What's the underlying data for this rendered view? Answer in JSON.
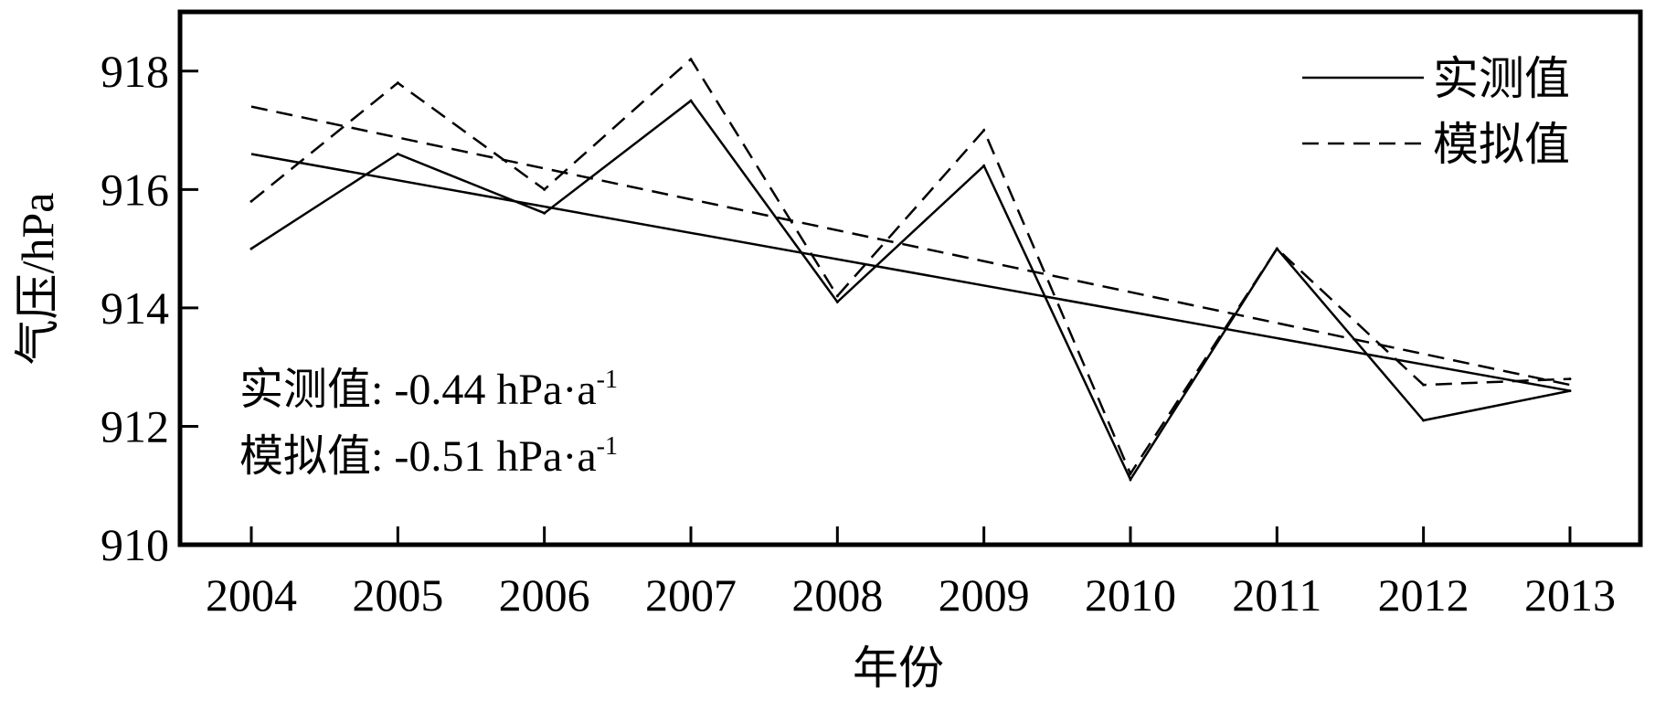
{
  "chart_data": {
    "type": "line",
    "xlabel": "年份",
    "ylabel": "气压/hPa",
    "ylim": [
      910,
      919
    ],
    "yticks": [
      910,
      912,
      914,
      916,
      918
    ],
    "x": [
      "2004",
      "2005",
      "2006",
      "2007",
      "2008",
      "2009",
      "2010",
      "2011",
      "2012",
      "2013"
    ],
    "series": [
      {
        "name": "实测值",
        "style": "solid",
        "values": [
          915.0,
          916.6,
          915.6,
          917.5,
          914.1,
          916.4,
          911.1,
          915.0,
          912.1,
          912.6
        ]
      },
      {
        "name": "模拟值",
        "style": "dashed",
        "values": [
          915.8,
          917.8,
          916.0,
          918.2,
          914.2,
          917.0,
          911.2,
          915.0,
          912.7,
          912.8
        ]
      }
    ],
    "trendlines": [
      {
        "series": "实测值",
        "style": "solid",
        "start": 916.6,
        "end": 912.6
      },
      {
        "series": "模拟值",
        "style": "dashed",
        "start": 917.4,
        "end": 912.7
      }
    ],
    "annotations": [
      {
        "label": "实测值: ",
        "value": "-0.44 hPa·a",
        "sup": "-1"
      },
      {
        "label": "模拟值: ",
        "value": "-0.51 hPa·a",
        "sup": "-1"
      }
    ],
    "legend": {
      "position": "top-right"
    },
    "grid": false,
    "color": "#000000"
  }
}
